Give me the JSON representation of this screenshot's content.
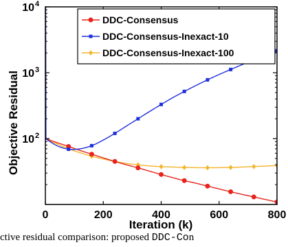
{
  "chart_data": {
    "type": "line",
    "xlabel": "Iteration (k)",
    "ylabel": "Objective Residual",
    "xlim": [
      0,
      800
    ],
    "ylim": [
      10,
      10000
    ],
    "yscale": "log",
    "grid": false,
    "legend_position": "top-right",
    "x_ticks": [
      "0",
      "200",
      "400",
      "600",
      "800"
    ],
    "y_ticks": [
      {
        "base": "10",
        "exp": "2",
        "value": 100
      },
      {
        "base": "10",
        "exp": "3",
        "value": 1000
      },
      {
        "base": "10",
        "exp": "4",
        "value": 10000
      }
    ],
    "series": [
      {
        "name": "DDC-Consensus",
        "color": "#e8231c",
        "marker": "circle",
        "x": [
          0,
          40,
          80,
          120,
          160,
          200,
          240,
          280,
          320,
          360,
          400,
          440,
          480,
          520,
          560,
          600,
          640,
          680,
          720,
          760,
          800
        ],
        "y": [
          100,
          87,
          76,
          66,
          58,
          51,
          45,
          40,
          36,
          32,
          28.5,
          25.5,
          23,
          21,
          19,
          17.2,
          15.6,
          14.2,
          13,
          11.9,
          10.9
        ]
      },
      {
        "name": "DDC-Consensus-Inexact-10",
        "color": "#1f2fdc",
        "marker": "square",
        "spike": {
          "x": [
            0,
            1,
            2
          ],
          "y": [
            10000,
            10000,
            100
          ]
        },
        "x": [
          0,
          40,
          80,
          120,
          160,
          200,
          240,
          280,
          320,
          360,
          400,
          440,
          480,
          520,
          560,
          600,
          640,
          680,
          720,
          760,
          800
        ],
        "y": [
          100,
          78,
          69,
          70,
          78,
          95,
          120,
          155,
          200,
          258,
          330,
          418,
          520,
          640,
          780,
          940,
          1120,
          1330,
          1570,
          1850,
          2150
        ]
      },
      {
        "name": "DDC-Consensus-Inexact-100",
        "color": "#f2b42a",
        "marker": "diamond",
        "spike": {
          "x": [
            0,
            1,
            2
          ],
          "y": [
            10000,
            10000,
            100
          ]
        },
        "x": [
          0,
          40,
          80,
          120,
          160,
          200,
          240,
          280,
          320,
          360,
          400,
          440,
          480,
          520,
          560,
          600,
          640,
          680,
          720,
          760,
          800
        ],
        "y": [
          100,
          83,
          70,
          61,
          54,
          49,
          45,
          42,
          40,
          38.5,
          37.5,
          37,
          36.5,
          36.2,
          36.1,
          36.2,
          36.5,
          37,
          37.6,
          38.3,
          39
        ]
      }
    ]
  },
  "caption": {
    "before": "ctive residual comparison: proposed ",
    "code": "DDC-Co",
    "after": "n"
  }
}
